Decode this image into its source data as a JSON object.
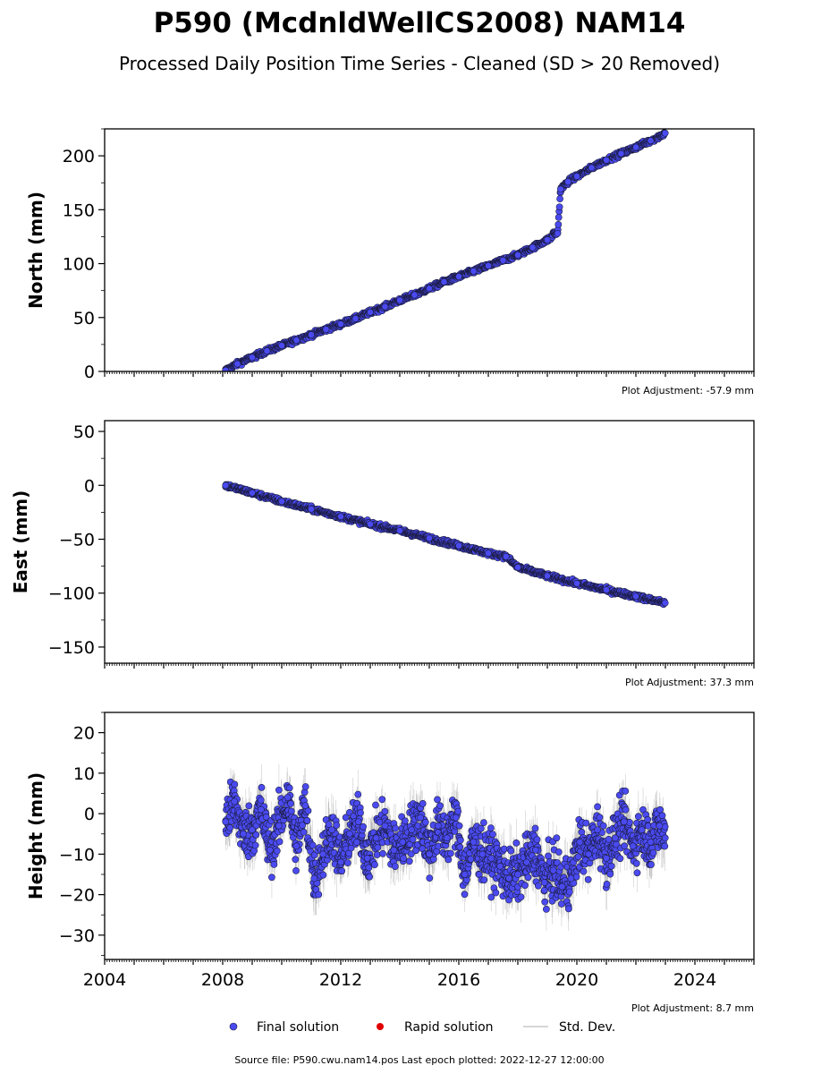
{
  "header": {
    "title": "P590 (McdnldWellCS2008) NAM14",
    "subtitle": "Processed Daily Position Time Series - Cleaned (SD > 20 Removed)"
  },
  "legend": {
    "final_label": "Final solution",
    "rapid_label": "Rapid solution",
    "std_label": "Std. Dev."
  },
  "footer": {
    "source": "Source file: P590.cwu.nam14.pos  Last epoch plotted: 2022-12-27 12:00:00"
  },
  "colors": {
    "final": "#4a4af0",
    "final_edge": "#1a1a3a",
    "rapid": "#e00000",
    "std": "#a0a0a0"
  },
  "chart_data": [
    {
      "type": "scatter",
      "name": "north",
      "ylabel": "North (mm)",
      "adjustment": "Plot Adjustment: -57.9 mm",
      "xlim": [
        2004,
        2026
      ],
      "ylim": [
        0,
        225
      ],
      "yticks": [
        0,
        50,
        100,
        150,
        200
      ],
      "series": [
        {
          "name": "Final solution",
          "x": [
            2008.1,
            2008.5,
            2009.0,
            2009.5,
            2010.0,
            2010.5,
            2011.0,
            2011.5,
            2012.0,
            2012.5,
            2013.0,
            2013.5,
            2014.0,
            2014.5,
            2015.0,
            2015.5,
            2016.0,
            2016.5,
            2017.0,
            2017.5,
            2018.0,
            2018.5,
            2019.0,
            2019.35,
            2019.45,
            2019.7,
            2020.0,
            2020.5,
            2021.0,
            2021.5,
            2022.0,
            2022.5,
            2022.99
          ],
          "y": [
            1,
            7,
            13,
            19,
            24,
            29,
            34,
            39,
            44,
            49,
            55,
            60,
            66,
            71,
            77,
            83,
            88,
            93,
            98,
            103,
            108,
            115,
            122,
            128,
            169,
            176,
            181,
            189,
            196,
            202,
            208,
            214,
            221
          ]
        }
      ]
    },
    {
      "type": "scatter",
      "name": "east",
      "ylabel": "East (mm)",
      "adjustment": "Plot Adjustment: 37.3 mm",
      "xlim": [
        2004,
        2026
      ],
      "ylim": [
        -165,
        60
      ],
      "yticks": [
        50,
        0,
        -50,
        -100,
        -150
      ],
      "series": [
        {
          "name": "Final solution",
          "x": [
            2008.1,
            2009.0,
            2010.0,
            2011.0,
            2012.0,
            2013.0,
            2014.0,
            2015.0,
            2016.0,
            2017.0,
            2017.6,
            2018.0,
            2019.0,
            2020.0,
            2021.0,
            2022.0,
            2022.99
          ],
          "y": [
            0,
            -7,
            -15,
            -22,
            -29,
            -36,
            -42,
            -49,
            -56,
            -63,
            -66,
            -76,
            -84,
            -91,
            -97,
            -103,
            -109
          ]
        }
      ]
    },
    {
      "type": "scatter",
      "name": "height",
      "ylabel": "Height (mm)",
      "adjustment": "Plot Adjustment: 8.7 mm",
      "xlim": [
        2004,
        2026
      ],
      "ylim": [
        -36,
        25
      ],
      "yticks": [
        20,
        10,
        0,
        -10,
        -20,
        -30
      ],
      "xticks": [
        2004,
        2008,
        2012,
        2016,
        2020,
        2024
      ],
      "series": [
        {
          "name": "Final solution",
          "x": [
            2008.1,
            2008.4,
            2008.7,
            2009.0,
            2009.3,
            2009.6,
            2009.9,
            2010.2,
            2010.5,
            2010.8,
            2011.1,
            2011.4,
            2011.7,
            2012.0,
            2012.3,
            2012.6,
            2012.9,
            2013.2,
            2013.5,
            2013.8,
            2014.1,
            2014.4,
            2014.7,
            2015.0,
            2015.3,
            2015.6,
            2015.9,
            2016.2,
            2016.5,
            2016.8,
            2017.1,
            2017.4,
            2017.7,
            2018.0,
            2018.3,
            2018.6,
            2018.9,
            2019.2,
            2019.5,
            2019.8,
            2020.1,
            2020.4,
            2020.7,
            2021.0,
            2021.3,
            2021.6,
            2021.9,
            2022.2,
            2022.5,
            2022.8,
            2022.99
          ],
          "y": [
            -2,
            3,
            -5,
            -4,
            1,
            -9,
            -3,
            4,
            -8,
            2,
            -16,
            -10,
            -4,
            -12,
            -5,
            -2,
            -11,
            -6,
            -3,
            -9,
            -7,
            -4,
            -1,
            -10,
            -3,
            -6,
            -1,
            -15,
            -7,
            -10,
            -11,
            -13,
            -16,
            -15,
            -12,
            -9,
            -17,
            -14,
            -18,
            -16,
            -7,
            -10,
            -4,
            -11,
            -6,
            -2,
            -8,
            -4,
            -7,
            -3,
            -6
          ]
        }
      ]
    }
  ]
}
